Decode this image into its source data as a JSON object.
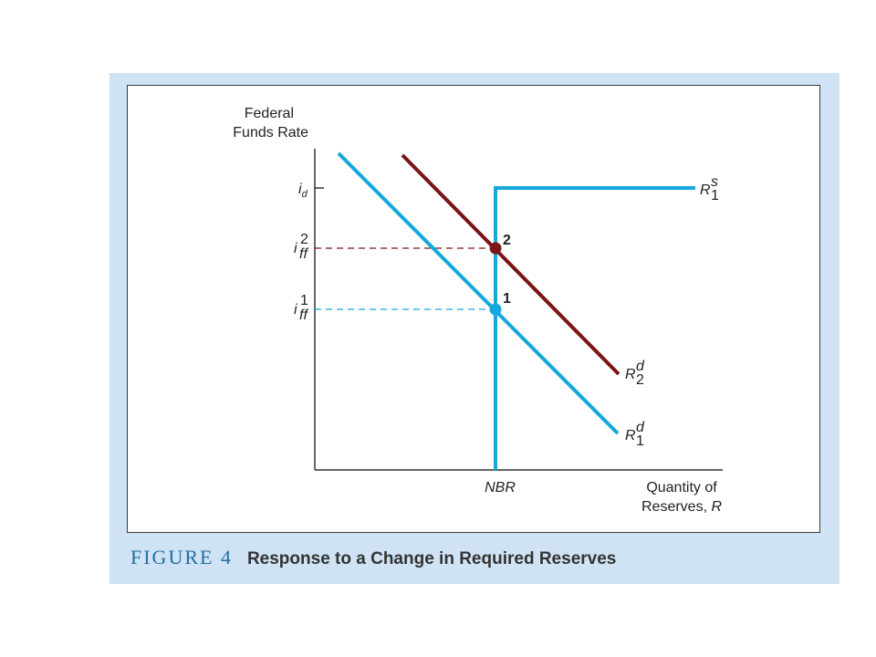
{
  "colors": {
    "panel": "#cfe3f4",
    "supply": "#14a8dc",
    "demand_1": "#14a8dc",
    "demand_2": "#7a1416",
    "caption_number": "#1f6fa5",
    "caption_title": "#333333"
  },
  "diagram": {
    "y_axis_label_line1": "Federal",
    "y_axis_label_line2": "Funds Rate",
    "x_axis_label_line1": "Quantity of",
    "x_axis_label_line2_text": "Reserves, ",
    "x_axis_label_line2_var": "R",
    "tick_x": "NBR",
    "tick_id": {
      "base": "i",
      "sub": "d"
    },
    "tick_iff2": {
      "base": "i",
      "sup": "2",
      "sub": "ff"
    },
    "tick_iff1": {
      "base": "i",
      "sup": "1",
      "sub": "ff"
    },
    "curve_supply": {
      "base": "R",
      "sup": "s",
      "sub": "1"
    },
    "curve_demand2": {
      "base": "R",
      "sup": "d",
      "sub": "2"
    },
    "curve_demand1": {
      "base": "R",
      "sup": "d",
      "sub": "1"
    },
    "point_2": "2",
    "point_1": "1"
  },
  "caption": {
    "number": "FIGURE 4",
    "title": "Response to a Change in Required Reserves"
  }
}
